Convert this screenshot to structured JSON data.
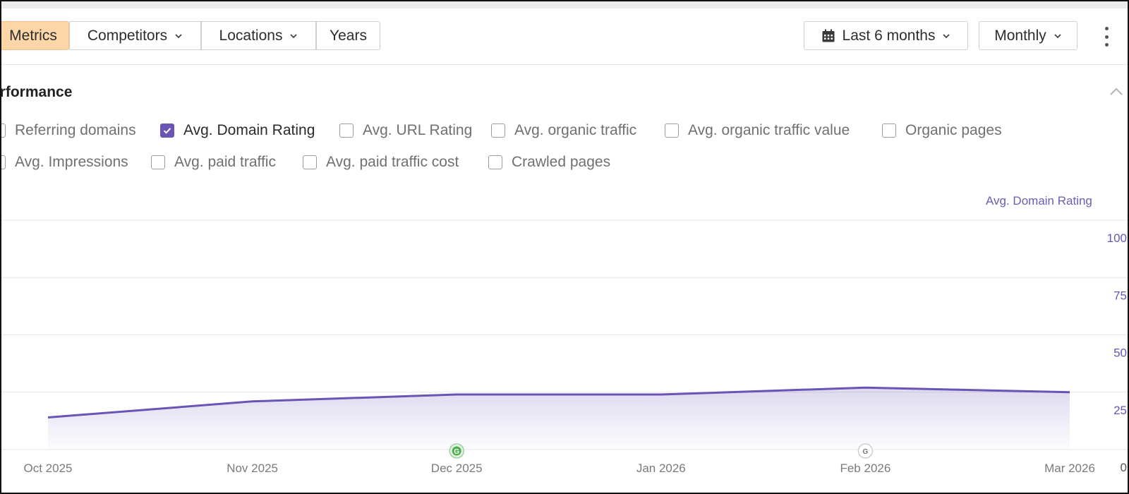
{
  "toolbar": {
    "metrics_label": "Metrics",
    "competitors_label": "Competitors",
    "locations_label": "Locations",
    "years_label": "Years",
    "range_label": "Last 6 months",
    "interval_label": "Monthly"
  },
  "section": {
    "title": "erformance"
  },
  "metrics": {
    "row1": [
      {
        "label": "Referring domains",
        "checked": false
      },
      {
        "label": "Avg. Domain Rating",
        "checked": true
      },
      {
        "label": "Avg. URL Rating",
        "checked": false
      },
      {
        "label": "Avg. organic traffic",
        "checked": false
      },
      {
        "label": "Avg. organic traffic value",
        "checked": false
      },
      {
        "label": "Organic pages",
        "checked": false
      }
    ],
    "row2": [
      {
        "label": "Avg. Impressions",
        "checked": false
      },
      {
        "label": "Avg. paid traffic",
        "checked": false
      },
      {
        "label": "Avg. paid traffic cost",
        "checked": false
      },
      {
        "label": "Crawled pages",
        "checked": false
      }
    ]
  },
  "colors": {
    "accent": "#6a54b5",
    "metrics_active": "#fdd6a8",
    "google_update_green": "#4caf50",
    "google_update_gray": "#9e9e9e"
  },
  "chart_data": {
    "type": "area",
    "ylabel": "Avg. Domain Rating",
    "x": [
      "Oct 2025",
      "Nov 2025",
      "Dec 2025",
      "Jan 2026",
      "Feb 2026",
      "Mar 2026"
    ],
    "series": [
      {
        "name": "Avg. Domain Rating",
        "values": [
          14,
          21,
          24,
          24,
          27,
          25
        ]
      }
    ],
    "ylim": [
      0,
      100
    ],
    "yticks": [
      0,
      25,
      50,
      75,
      100
    ],
    "grid": true,
    "annotations": [
      {
        "label": "G",
        "x": "Dec 2025",
        "style": "green"
      },
      {
        "label": "G",
        "x": "Feb 2026",
        "style": "gray"
      }
    ]
  }
}
